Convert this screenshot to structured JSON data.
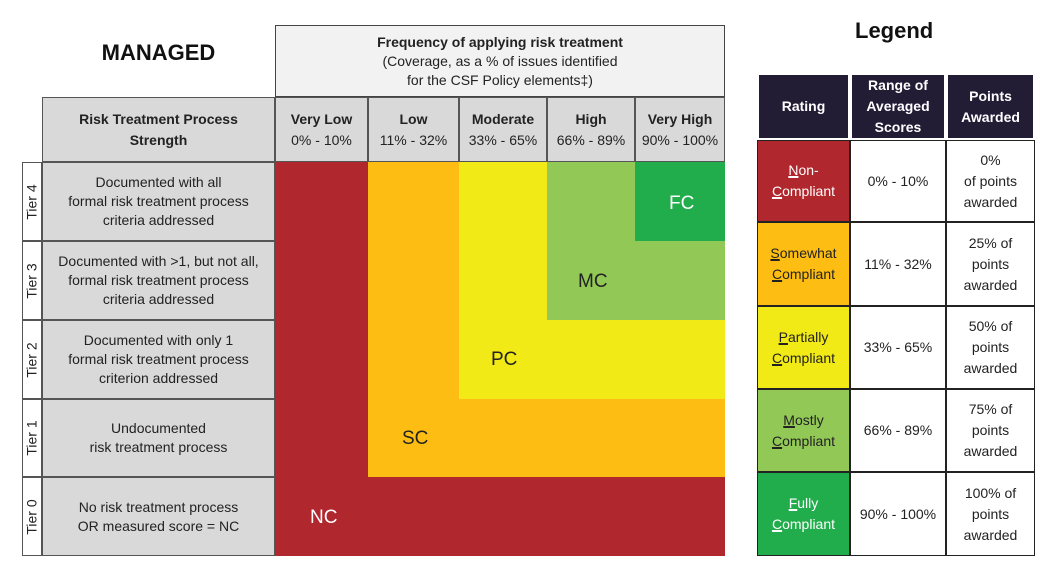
{
  "title": "MANAGED",
  "frequency_header": {
    "line1": "Frequency of applying risk treatment",
    "line2": "(Coverage, as a % of issues identified",
    "line3": "for the CSF Policy elements‡)"
  },
  "row_header": {
    "line1": "Risk Treatment Process",
    "line2": "Strength"
  },
  "columns": [
    {
      "label": "Very Low",
      "range": "0% - 10%"
    },
    {
      "label": "Low",
      "range": "11% - 32%"
    },
    {
      "label": "Moderate",
      "range": "33% - 65%"
    },
    {
      "label": "High",
      "range": "66% - 89%"
    },
    {
      "label": "Very High",
      "range": "90% - 100%"
    }
  ],
  "rows": [
    {
      "tier": "Tier 4",
      "l1": "Documented with all",
      "l2": "formal risk treatment process",
      "l3": "criteria addressed"
    },
    {
      "tier": "Tier 3",
      "l1": "Documented with >1, but not all,",
      "l2": "formal risk treatment process",
      "l3": "criteria addressed"
    },
    {
      "tier": "Tier 2",
      "l1": "Documented with only 1",
      "l2": "formal risk treatment process",
      "l3": "criterion addressed"
    },
    {
      "tier": "Tier 1",
      "l1": "Undocumented",
      "l2": "risk treatment process",
      "l3": ""
    },
    {
      "tier": "Tier 0",
      "l1": "No risk treatment process",
      "l2": "OR measured score = NC",
      "l3": ""
    }
  ],
  "zones": {
    "NC": "NC",
    "SC": "SC",
    "PC": "PC",
    "MC": "MC",
    "FC": "FC"
  },
  "colors": {
    "NC": "#b0272e",
    "SC": "#fdbd12",
    "PC": "#f2ea16",
    "MC": "#92c855",
    "FC": "#22ad4c",
    "header": "#221c35"
  },
  "legend": {
    "title": "Legend",
    "headers": {
      "rating": "Rating",
      "range1": "Range of",
      "range2": "Averaged",
      "range3": "Scores",
      "points1": "Points",
      "points2": "Awarded"
    },
    "rows": [
      {
        "r1": "Non-",
        "r2": "Compliant",
        "range": "0% - 10%",
        "p1": "0%",
        "p2": "of points",
        "p3": "awarded"
      },
      {
        "r1": "Somewhat",
        "r2": "Compliant",
        "range": "11% - 32%",
        "p1": "25% of",
        "p2": "points",
        "p3": "awarded"
      },
      {
        "r1": "Partially",
        "r2": "Compliant",
        "range": "33% - 65%",
        "p1": "50% of",
        "p2": "points",
        "p3": "awarded"
      },
      {
        "r1": "Mostly",
        "r2": "Compliant",
        "range": "66% - 89%",
        "p1": "75% of",
        "p2": "points",
        "p3": "awarded"
      },
      {
        "r1": "Fully",
        "r2": "Compliant",
        "range": "90% - 100%",
        "p1": "100% of",
        "p2": "points",
        "p3": "awarded"
      }
    ]
  }
}
